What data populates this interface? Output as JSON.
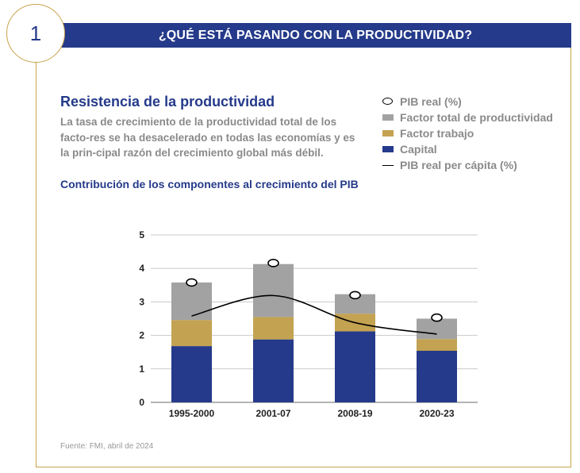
{
  "header": {
    "number": "1",
    "title": "¿QUÉ ESTÁ PASANDO CON LA PRODUCTIVIDAD?"
  },
  "headline": "Resistencia de la productividad",
  "body_text": "La tasa de crecimiento de la productividad total de los facto-res se ha desacelerado en todas las economías y es la prin-cipal razón del crecimiento global más débil.",
  "source": "Fuente: FMI, abril de 2024",
  "colors": {
    "capital": "#253a8a",
    "trabajo": "#c3a252",
    "ptf": "#a2a2a2",
    "line": "#000000",
    "accent": "#253a8a",
    "frame": "#c8a24a"
  },
  "chart_data": {
    "type": "bar",
    "title": "Contribución de los componentes al crecimiento del PIB",
    "categories": [
      "1995-2000",
      "2001-07",
      "2008-19",
      "2020-23"
    ],
    "series": [
      {
        "name": "Capital",
        "values": [
          1.68,
          1.88,
          2.12,
          1.54
        ]
      },
      {
        "name": "Factor trabajo",
        "values": [
          0.78,
          0.67,
          0.53,
          0.35
        ]
      },
      {
        "name": "Factor total de productividad",
        "values": [
          1.12,
          1.58,
          0.58,
          0.61
        ]
      }
    ],
    "markers": {
      "name": "PIB real (%)",
      "values": [
        3.58,
        4.16,
        3.2,
        2.53
      ]
    },
    "line": {
      "name": "PIB real per cápita (%)",
      "values": [
        2.58,
        3.19,
        2.38,
        2.04
      ]
    },
    "yticks": [
      "0",
      "1",
      "2",
      "3",
      "4",
      "5"
    ],
    "ylim": [
      0,
      5
    ],
    "grid": true,
    "legend_position": "top-right"
  }
}
